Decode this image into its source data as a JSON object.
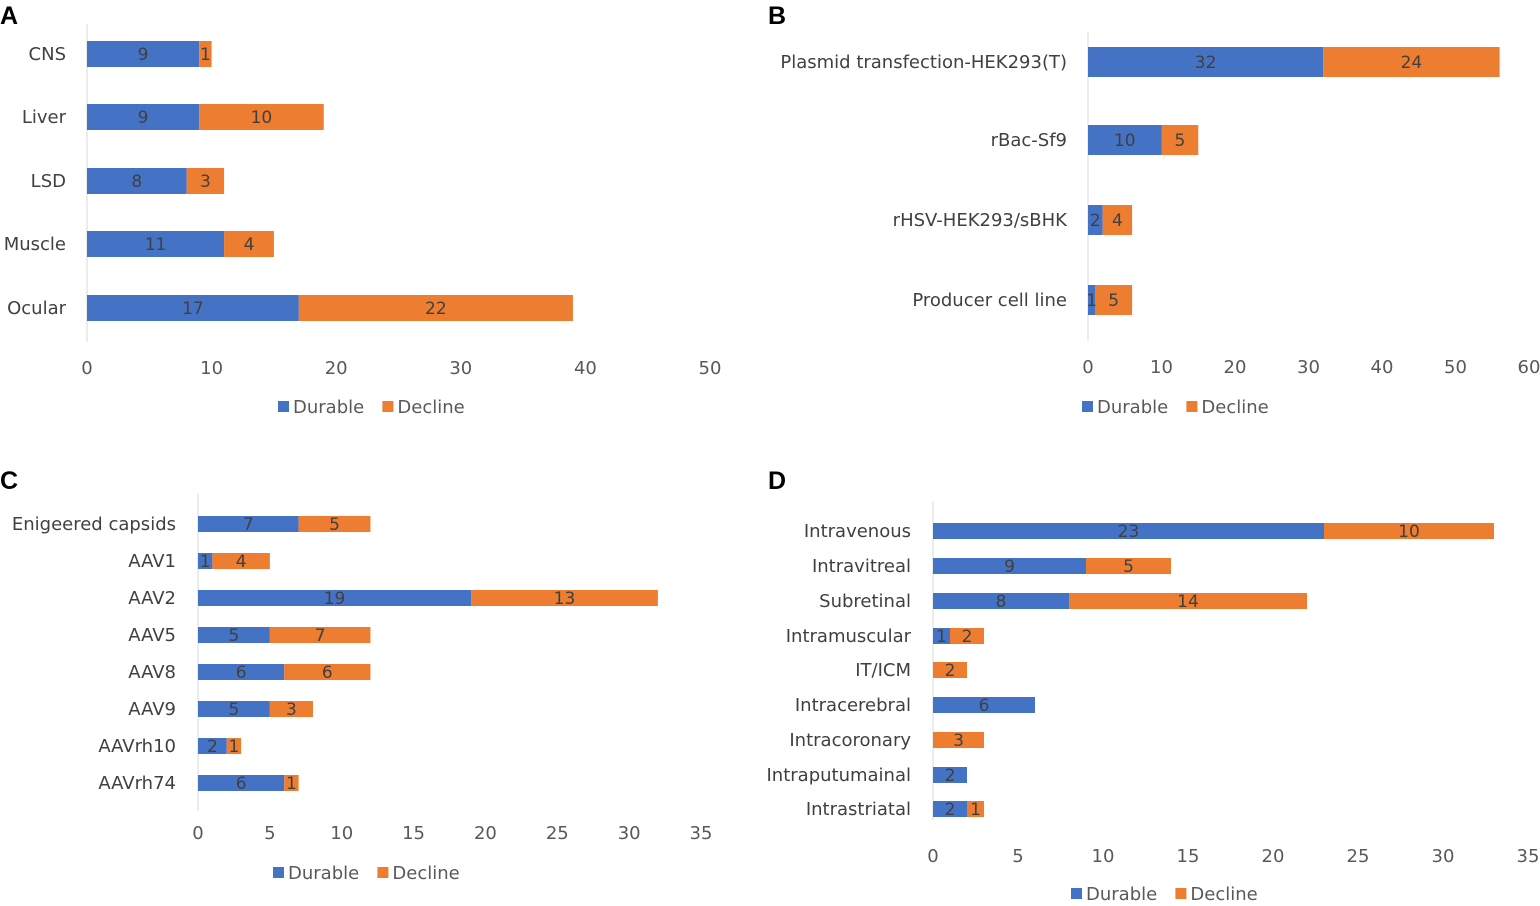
{
  "series_names": [
    "Durable",
    "Decline"
  ],
  "colors": {
    "durable": "#4472C4",
    "decline": "#ED7D31",
    "axis": "#D9D9D9"
  },
  "chart_data": [
    {
      "panel": "A",
      "type": "bar",
      "orientation": "horizontal",
      "stacked": true,
      "categories": [
        "CNS",
        "Liver",
        "LSD",
        "Muscle",
        "Ocular"
      ],
      "series": [
        {
          "name": "Durable",
          "values": [
            9,
            9,
            8,
            11,
            17
          ]
        },
        {
          "name": "Decline",
          "values": [
            1,
            10,
            3,
            4,
            22
          ]
        }
      ],
      "xlim": [
        0,
        50
      ],
      "ticks": [
        "0",
        "10",
        "20",
        "30",
        "40",
        "50"
      ],
      "legend": "bottom",
      "grid": false
    },
    {
      "panel": "B",
      "type": "bar",
      "orientation": "horizontal",
      "stacked": true,
      "categories": [
        "Plasmid transfection-HEK293(T)",
        "rBac-Sf9",
        "rHSV-HEK293/sBHK",
        "Producer cell line"
      ],
      "series": [
        {
          "name": "Durable",
          "values": [
            32,
            10,
            2,
            1
          ]
        },
        {
          "name": "Decline",
          "values": [
            24,
            5,
            4,
            5
          ]
        }
      ],
      "xlim": [
        0,
        60
      ],
      "ticks": [
        "0",
        "10",
        "20",
        "30",
        "40",
        "50",
        "60"
      ],
      "legend": "bottom",
      "grid": false
    },
    {
      "panel": "C",
      "type": "bar",
      "orientation": "horizontal",
      "stacked": true,
      "categories": [
        "Enigeered capsids",
        "AAV1",
        "AAV2",
        "AAV5",
        "AAV8",
        "AAV9",
        "AAVrh10",
        "AAVrh74"
      ],
      "series": [
        {
          "name": "Durable",
          "values": [
            7,
            1,
            19,
            5,
            6,
            5,
            2,
            6
          ]
        },
        {
          "name": "Decline",
          "values": [
            5,
            4,
            13,
            7,
            6,
            3,
            1,
            1
          ]
        }
      ],
      "xlim": [
        0,
        35
      ],
      "ticks": [
        "0",
        "5",
        "10",
        "15",
        "20",
        "25",
        "30",
        "35"
      ],
      "legend": "bottom",
      "grid": false
    },
    {
      "panel": "D",
      "type": "bar",
      "orientation": "horizontal",
      "stacked": true,
      "categories": [
        "Intravenous",
        "Intravitreal",
        "Subretinal",
        "Intramuscular",
        "IT/ICM",
        "Intracerebral",
        "Intracoronary",
        "Intraputumainal",
        "Intrastriatal"
      ],
      "series": [
        {
          "name": "Durable",
          "values": [
            23,
            9,
            8,
            1,
            0,
            6,
            0,
            2,
            2
          ]
        },
        {
          "name": "Decline",
          "values": [
            10,
            5,
            14,
            2,
            2,
            0,
            3,
            0,
            1
          ]
        }
      ],
      "xlim": [
        0,
        35
      ],
      "ticks": [
        "0",
        "5",
        "10",
        "15",
        "20",
        "25",
        "30",
        "35"
      ],
      "legend": "bottom",
      "grid": false
    }
  ]
}
